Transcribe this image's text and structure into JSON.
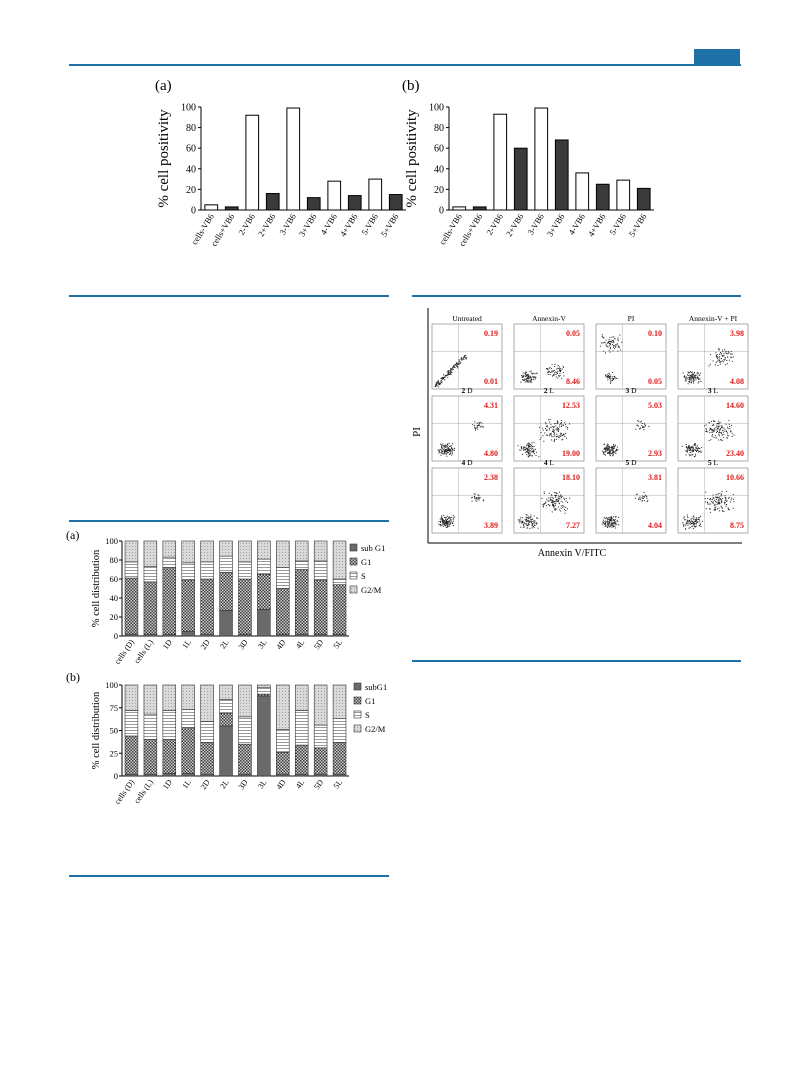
{
  "fig_a": {
    "letter": "(a)",
    "chart_data": {
      "type": "bar",
      "ylabel": "% cell positivity",
      "ylim": [
        0,
        100
      ],
      "yticks": [
        0,
        20,
        40,
        60,
        80,
        100
      ],
      "categories": [
        "cells-VB6",
        "cells+VB6",
        "2-VB6",
        "2+VB6",
        "3-VB6",
        "3+VB6",
        "4-VB6",
        "4+VB6",
        "5-VB6",
        "5+VB6"
      ],
      "values": [
        5,
        3,
        92,
        16,
        99,
        12,
        28,
        14,
        30,
        15
      ],
      "fills": [
        "#ffffff",
        "#3a3a3a",
        "#ffffff",
        "#3a3a3a",
        "#ffffff",
        "#3a3a3a",
        "#ffffff",
        "#3a3a3a",
        "#ffffff",
        "#3a3a3a"
      ]
    }
  },
  "fig_b": {
    "letter": "(b)",
    "chart_data": {
      "type": "bar",
      "ylabel": "% cell positivity",
      "ylim": [
        0,
        100
      ],
      "yticks": [
        0,
        20,
        40,
        60,
        80,
        100
      ],
      "categories": [
        "cells-VB6",
        "cells+VB6",
        "2-VB6",
        "2+VB6",
        "3-VB6",
        "3+VB6",
        "4-VB6",
        "4+VB6",
        "5-VB6",
        "5+VB6"
      ],
      "values": [
        3,
        3,
        93,
        60,
        99,
        68,
        36,
        25,
        29,
        21
      ],
      "fills": [
        "#ffffff",
        "#3a3a3a",
        "#ffffff",
        "#3a3a3a",
        "#ffffff",
        "#3a3a3a",
        "#ffffff",
        "#3a3a3a",
        "#ffffff",
        "#3a3a3a"
      ]
    }
  },
  "fig_c": {
    "letter": "(a)",
    "chart_data": {
      "type": "bar",
      "stacked": true,
      "ylabel": "% cell distribution",
      "ylim": [
        0,
        100
      ],
      "yticks": [
        0,
        20,
        40,
        60,
        80,
        100
      ],
      "categories": [
        "cells (D)",
        "cells (L)",
        "1D",
        "1L",
        "2D",
        "2L",
        "3D",
        "3L",
        "4D",
        "4L",
        "5D",
        "5L"
      ],
      "legend_position": "right",
      "series": [
        {
          "name": "sub G1",
          "values": [
            2,
            2,
            2,
            5,
            2,
            27,
            2,
            28,
            2,
            2,
            2,
            2
          ]
        },
        {
          "name": "G1",
          "values": [
            59,
            55,
            70,
            54,
            58,
            40,
            58,
            37,
            48,
            68,
            57,
            52
          ]
        },
        {
          "name": "S",
          "values": [
            17,
            16,
            11,
            18,
            18,
            17,
            18,
            16,
            22,
            9,
            20,
            6
          ]
        },
        {
          "name": "G2/M",
          "values": [
            22,
            27,
            17,
            23,
            22,
            16,
            22,
            19,
            28,
            21,
            21,
            40
          ]
        }
      ]
    }
  },
  "fig_d": {
    "letter": "(b)",
    "chart_data": {
      "type": "bar",
      "stacked": true,
      "ylabel": "% cell distribution",
      "ylim": [
        0,
        100
      ],
      "yticks": [
        0,
        25,
        50,
        75,
        100
      ],
      "categories": [
        "cells (D)",
        "cells (L)",
        "1D",
        "1L",
        "2D",
        "2L",
        "3D",
        "3L",
        "4D",
        "4L",
        "5D",
        "5L"
      ],
      "legend_position": "right",
      "series": [
        {
          "name": "subG1",
          "values": [
            2,
            2,
            3,
            3,
            2,
            55,
            2,
            88,
            2,
            2,
            2,
            2
          ]
        },
        {
          "name": "G1",
          "values": [
            42,
            38,
            37,
            50,
            35,
            14,
            33,
            2,
            24,
            32,
            29,
            35
          ]
        },
        {
          "name": "S",
          "values": [
            28,
            28,
            32,
            20,
            23,
            15,
            30,
            7,
            25,
            38,
            25,
            26
          ]
        },
        {
          "name": "G2/M",
          "values": [
            28,
            32,
            28,
            27,
            40,
            16,
            35,
            3,
            49,
            28,
            44,
            37
          ]
        }
      ]
    }
  },
  "fig_flow": {
    "chart_data": {
      "type": "scatter",
      "xlabel": "Annexin V/FITC",
      "ylabel": "PI",
      "panels": [
        {
          "label": "Untreated",
          "bold_prefix": "",
          "upper": "0.19",
          "lower": "0.01",
          "shape": "diag"
        },
        {
          "label": "Annexin-V",
          "bold_prefix": "",
          "upper": "0.05",
          "lower": "8.46",
          "shape": "ann"
        },
        {
          "label": "PI",
          "bold_prefix": "",
          "upper": "0.10",
          "lower": "0.05",
          "shape": "pi"
        },
        {
          "label": "Annexin-V + PI",
          "bold_prefix": "",
          "upper": "3.98",
          "lower": "4.08",
          "shape": "both"
        },
        {
          "label": " D",
          "bold_prefix": "2",
          "upper": "4.31",
          "lower": "4.80",
          "shape": "cluster"
        },
        {
          "label": " L",
          "bold_prefix": "2",
          "upper": "12.53",
          "lower": "19.00",
          "shape": "spread"
        },
        {
          "label": " D",
          "bold_prefix": "3",
          "upper": "5.03",
          "lower": "2.93",
          "shape": "cluster"
        },
        {
          "label": " L",
          "bold_prefix": "3",
          "upper": "14.60",
          "lower": "23.40",
          "shape": "spread"
        },
        {
          "label": " D",
          "bold_prefix": "4",
          "upper": "2.38",
          "lower": "3.89",
          "shape": "cluster"
        },
        {
          "label": " L",
          "bold_prefix": "4",
          "upper": "18.10",
          "lower": "7.27",
          "shape": "spread"
        },
        {
          "label": " D",
          "bold_prefix": "5",
          "upper": "3.81",
          "lower": "4.04",
          "shape": "cluster"
        },
        {
          "label": " L",
          "bold_prefix": "5",
          "upper": "10.66",
          "lower": "8.75",
          "shape": "spread"
        }
      ]
    }
  },
  "colors": {
    "rule": "#1f6fa8",
    "dark_bar": "#3a3a3a",
    "red_value": "#e01b1b"
  }
}
